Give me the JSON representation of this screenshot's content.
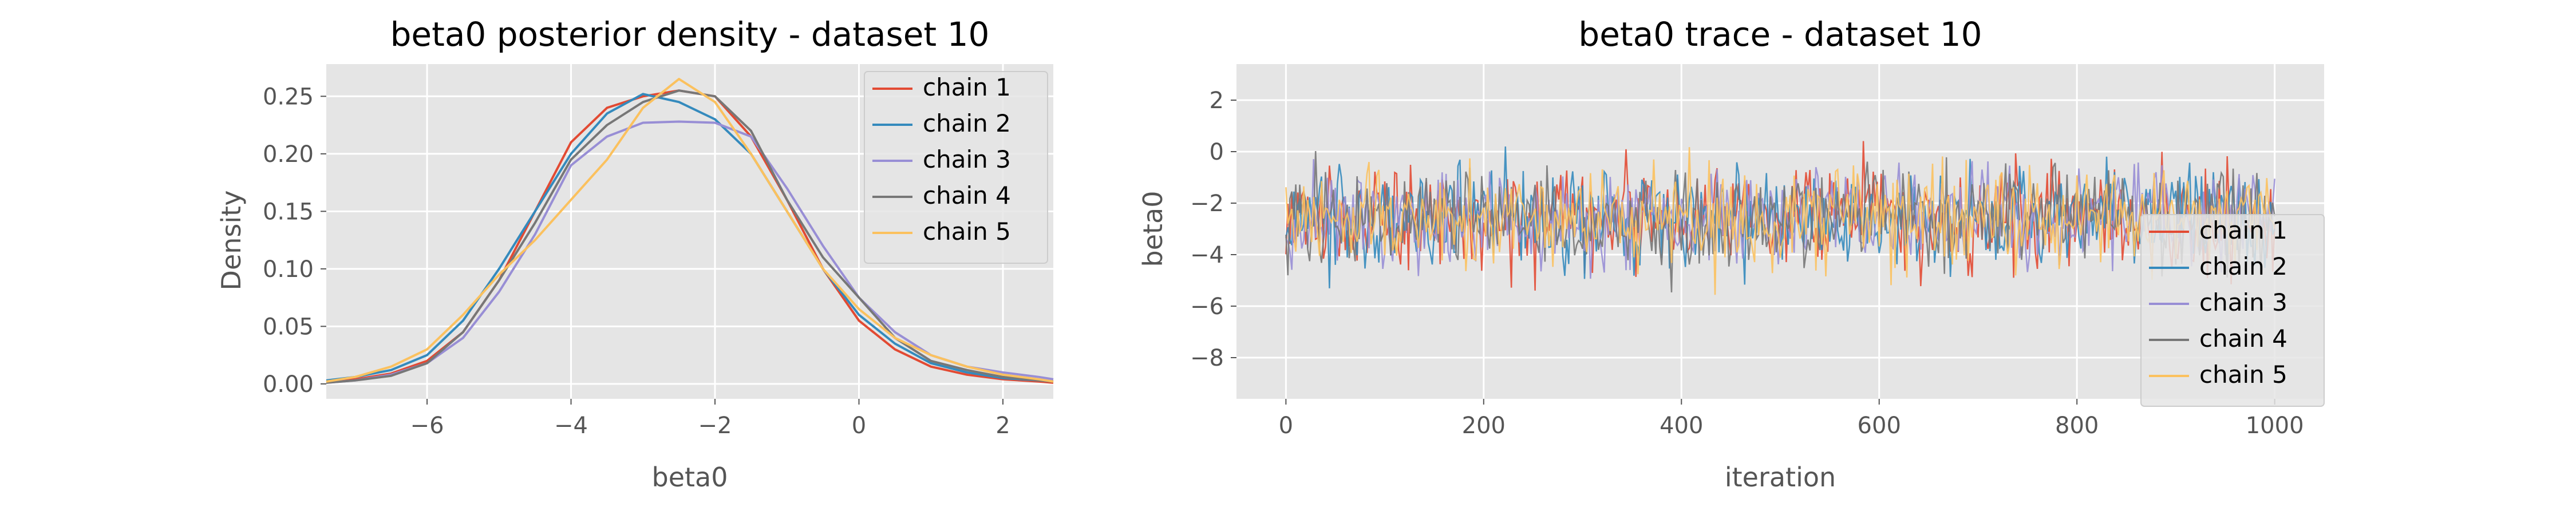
{
  "chart_data": [
    {
      "type": "line",
      "title": "beta0 posterior density - dataset 10",
      "xlabel": "beta0",
      "ylabel": "Density",
      "xlim": [
        -7.4,
        2.7
      ],
      "ylim": [
        -0.013,
        0.278
      ],
      "xticks": [
        -6,
        -4,
        -2,
        0,
        2
      ],
      "yticks": [
        0.0,
        0.05,
        0.1,
        0.15,
        0.2,
        0.25
      ],
      "ytick_format": 2,
      "grid": true,
      "legend": "top-right",
      "series": [
        {
          "name": "chain 1",
          "color": "#E24A33",
          "x": [
            -7.4,
            -7.0,
            -6.5,
            -6.0,
            -5.5,
            -5.0,
            -4.5,
            -4.0,
            -3.5,
            -3.0,
            -2.5,
            -2.0,
            -1.5,
            -1.0,
            -0.5,
            0.0,
            0.5,
            1.0,
            1.5,
            2.0,
            2.5,
            2.7
          ],
          "y": [
            0.002,
            0.004,
            0.009,
            0.02,
            0.045,
            0.09,
            0.15,
            0.21,
            0.24,
            0.25,
            0.255,
            0.25,
            0.215,
            0.16,
            0.1,
            0.055,
            0.03,
            0.015,
            0.008,
            0.004,
            0.002,
            0.001
          ]
        },
        {
          "name": "chain 2",
          "color": "#348ABD",
          "x": [
            -7.4,
            -7.0,
            -6.5,
            -6.0,
            -5.5,
            -5.0,
            -4.5,
            -4.0,
            -3.5,
            -3.0,
            -2.5,
            -2.0,
            -1.5,
            -1.0,
            -0.5,
            0.0,
            0.5,
            1.0,
            1.5,
            2.0,
            2.5,
            2.7
          ],
          "y": [
            0.003,
            0.006,
            0.012,
            0.025,
            0.055,
            0.1,
            0.15,
            0.2,
            0.235,
            0.252,
            0.245,
            0.23,
            0.2,
            0.15,
            0.1,
            0.06,
            0.035,
            0.018,
            0.01,
            0.005,
            0.003,
            0.002
          ]
        },
        {
          "name": "chain 3",
          "color": "#988ED5",
          "x": [
            -7.4,
            -7.0,
            -6.5,
            -6.0,
            -5.5,
            -5.0,
            -4.5,
            -4.0,
            -3.5,
            -3.0,
            -2.5,
            -2.0,
            -1.5,
            -1.0,
            -0.5,
            0.0,
            0.5,
            1.0,
            1.5,
            2.0,
            2.5,
            2.7
          ],
          "y": [
            0.001,
            0.003,
            0.008,
            0.018,
            0.04,
            0.08,
            0.13,
            0.19,
            0.215,
            0.227,
            0.228,
            0.227,
            0.215,
            0.17,
            0.12,
            0.075,
            0.045,
            0.025,
            0.015,
            0.01,
            0.006,
            0.004
          ]
        },
        {
          "name": "chain 4",
          "color": "#777777",
          "x": [
            -7.4,
            -7.0,
            -6.5,
            -6.0,
            -5.5,
            -5.0,
            -4.5,
            -4.0,
            -3.5,
            -3.0,
            -2.5,
            -2.0,
            -1.5,
            -1.0,
            -0.5,
            0.0,
            0.5,
            1.0,
            1.5,
            2.0,
            2.5,
            2.7
          ],
          "y": [
            0.001,
            0.003,
            0.007,
            0.018,
            0.045,
            0.09,
            0.14,
            0.195,
            0.225,
            0.245,
            0.255,
            0.25,
            0.22,
            0.16,
            0.11,
            0.075,
            0.04,
            0.02,
            0.012,
            0.006,
            0.003,
            0.002
          ]
        },
        {
          "name": "chain 5",
          "color": "#FBC15E",
          "x": [
            -7.4,
            -7.0,
            -6.5,
            -6.0,
            -5.5,
            -5.0,
            -4.5,
            -4.0,
            -3.5,
            -3.0,
            -2.5,
            -2.0,
            -1.5,
            -1.0,
            -0.5,
            0.0,
            0.5,
            1.0,
            1.5,
            2.0,
            2.5,
            2.7
          ],
          "y": [
            0.002,
            0.006,
            0.015,
            0.03,
            0.06,
            0.095,
            0.125,
            0.16,
            0.195,
            0.24,
            0.265,
            0.245,
            0.2,
            0.15,
            0.1,
            0.065,
            0.04,
            0.025,
            0.015,
            0.008,
            0.004,
            0.002
          ]
        }
      ]
    },
    {
      "type": "line",
      "title": "beta0 trace - dataset 10",
      "xlabel": "iteration",
      "ylabel": "beta0",
      "xlim": [
        -50,
        1050
      ],
      "ylim": [
        -9.6,
        3.4
      ],
      "xticks": [
        0,
        200,
        400,
        600,
        800,
        1000
      ],
      "yticks": [
        -8,
        -6,
        -4,
        -2,
        0,
        2
      ],
      "ytick_format": 0,
      "grid": true,
      "legend": "lower-right",
      "series": [
        {
          "name": "chain 1",
          "color": "#E24A33"
        },
        {
          "name": "chain 2",
          "color": "#348ABD"
        },
        {
          "name": "chain 3",
          "color": "#988ED5"
        },
        {
          "name": "chain 4",
          "color": "#777777"
        },
        {
          "name": "chain 5",
          "color": "#FBC15E"
        }
      ]
    }
  ]
}
